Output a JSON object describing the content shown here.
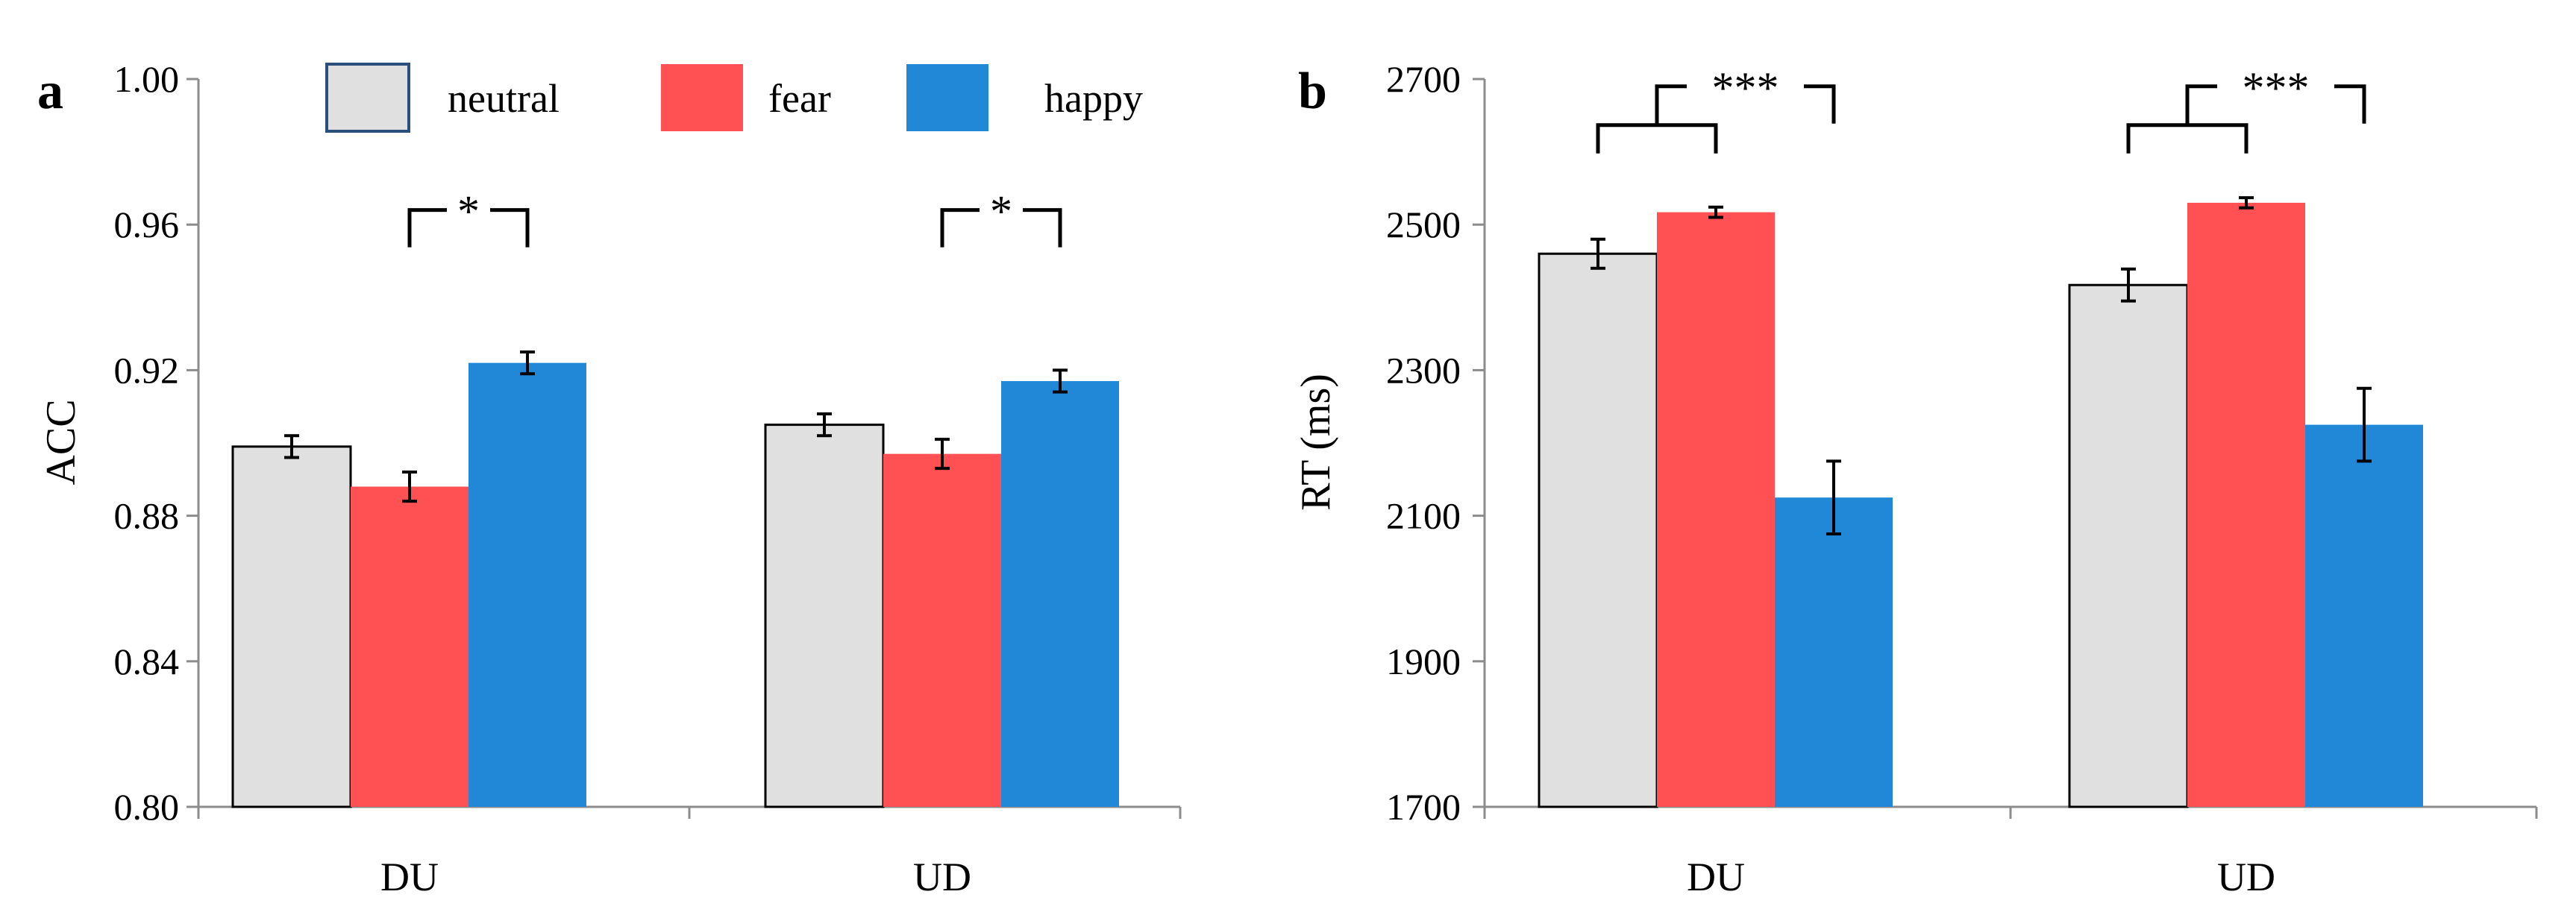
{
  "legend": [
    {
      "key": "neutral",
      "label": "neutral",
      "color": "#e0e0e0",
      "outline": "#2a4f7a"
    },
    {
      "key": "fear",
      "label": "fear",
      "color": "#ff5053",
      "outline": ""
    },
    {
      "key": "happy",
      "label": "happy",
      "color": "#2188d8",
      "outline": ""
    }
  ],
  "chart_data": [
    {
      "type": "bar",
      "panel": "a",
      "title": "",
      "xlabel": "",
      "ylabel": "ACC",
      "ylim": [
        0.8,
        1.0
      ],
      "yticks": [
        0.8,
        0.84,
        0.88,
        0.92,
        0.96,
        1.0
      ],
      "ytick_labels": [
        "0.80",
        "0.84",
        "0.88",
        "0.92",
        "0.96",
        "1.00"
      ],
      "categories": [
        "DU",
        "UD"
      ],
      "series": [
        {
          "name": "neutral",
          "color": "#e0e0e0",
          "outlined": true,
          "values": [
            0.899,
            0.905
          ],
          "errors": [
            0.003,
            0.003
          ]
        },
        {
          "name": "fear",
          "color": "#ff5053",
          "outlined": false,
          "values": [
            0.888,
            0.897
          ],
          "errors": [
            0.004,
            0.004
          ]
        },
        {
          "name": "happy",
          "color": "#2188d8",
          "outlined": false,
          "values": [
            0.922,
            0.917
          ],
          "errors": [
            0.003,
            0.003
          ]
        }
      ],
      "significance": [
        {
          "category": 0,
          "from_series": 1,
          "to_series": 2,
          "label": "*",
          "y": 0.964
        },
        {
          "category": 1,
          "from_series": 1,
          "to_series": 2,
          "label": "*",
          "y": 0.964
        }
      ]
    },
    {
      "type": "bar",
      "panel": "b",
      "title": "",
      "xlabel": "",
      "ylabel": "RT (ms)",
      "ylim": [
        1700,
        2700
      ],
      "yticks": [
        1700,
        1900,
        2100,
        2300,
        2500,
        2700
      ],
      "ytick_labels": [
        "1700",
        "1900",
        "2100",
        "2300",
        "2500",
        "2700"
      ],
      "categories": [
        "DU",
        "UD"
      ],
      "series": [
        {
          "name": "neutral",
          "color": "#e0e0e0",
          "outlined": true,
          "values": [
            2460,
            2417
          ],
          "errors": [
            20,
            22
          ]
        },
        {
          "name": "fear",
          "color": "#ff5053",
          "outlined": false,
          "values": [
            2517,
            2530
          ],
          "errors": [
            7,
            7
          ]
        },
        {
          "name": "happy",
          "color": "#2188d8",
          "outlined": false,
          "values": [
            2125,
            2225
          ],
          "errors": [
            50,
            50
          ]
        }
      ],
      "significance": [
        {
          "category": 0,
          "pair_from": [
            0,
            1
          ],
          "to_series": 2,
          "label": "***",
          "y": 2690
        },
        {
          "category": 1,
          "pair_from": [
            0,
            1
          ],
          "to_series": 2,
          "label": "***",
          "y": 2690
        }
      ]
    }
  ]
}
